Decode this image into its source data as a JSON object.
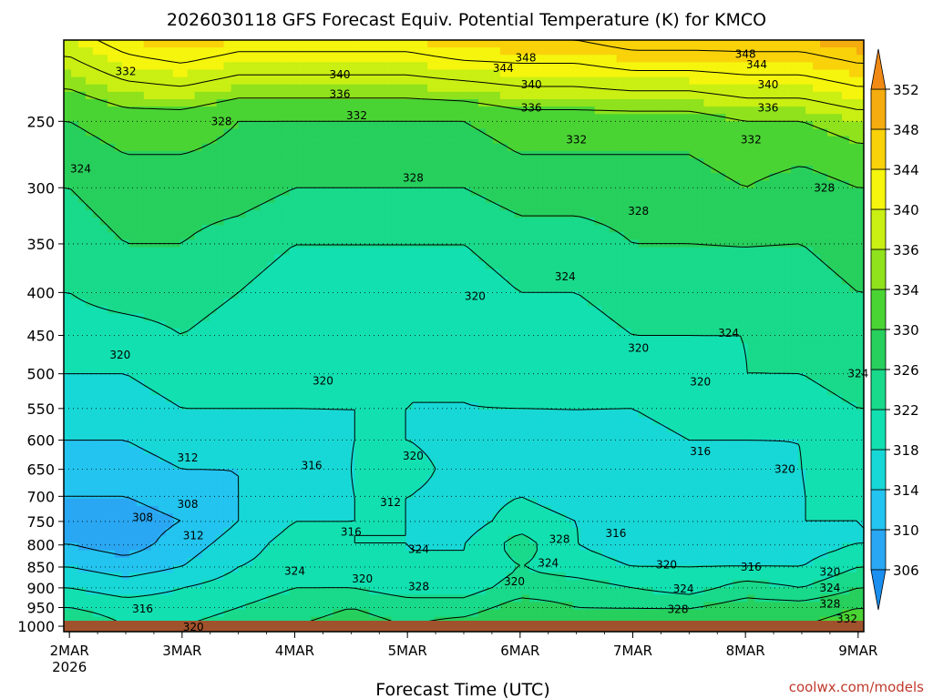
{
  "page": {
    "title": "2026030118 GFS Forecast Equiv. Potential Temperature (K) for KMCO",
    "credit": "coolwx.com/models"
  },
  "chart_data": {
    "type": "heatmap",
    "title": "2026030118 GFS Forecast Equiv. Potential Temperature (K) for KMCO",
    "xlabel": "Forecast Time (UTC)",
    "ylabel": "",
    "x_ticks": [
      {
        "day": 0,
        "label": "2MAR",
        "sublabel": "2026"
      },
      {
        "day": 1,
        "label": "3MAR",
        "sublabel": ""
      },
      {
        "day": 2,
        "label": "4MAR",
        "sublabel": ""
      },
      {
        "day": 3,
        "label": "5MAR",
        "sublabel": ""
      },
      {
        "day": 4,
        "label": "6MAR",
        "sublabel": ""
      },
      {
        "day": 5,
        "label": "7MAR",
        "sublabel": ""
      },
      {
        "day": 6,
        "label": "8MAR",
        "sublabel": ""
      },
      {
        "day": 7,
        "label": "9MAR",
        "sublabel": ""
      }
    ],
    "x_range_days": [
      -0.05,
      7.05
    ],
    "y_ticks": [
      1000,
      950,
      900,
      850,
      800,
      750,
      700,
      650,
      600,
      550,
      500,
      450,
      400,
      350,
      300,
      250
    ],
    "y_range_hPa": [
      1015,
      200
    ],
    "y_scale": "log",
    "grid": true,
    "colorbar": {
      "ticks": [
        306,
        310,
        314,
        318,
        322,
        326,
        330,
        334,
        336,
        340,
        344,
        348,
        352
      ],
      "colors": [
        "#2aa7f2",
        "#23c4ef",
        "#17d8d6",
        "#12e0b0",
        "#19d98a",
        "#27cf5c",
        "#4ad434",
        "#8fe21c",
        "#c9ef13",
        "#f5f50d",
        "#f9d20a",
        "#f4ac0e"
      ]
    },
    "levels": [
      1000,
      950,
      900,
      850,
      800,
      750,
      700,
      650,
      600,
      550,
      500,
      450,
      400,
      350,
      300,
      250,
      200
    ],
    "times": [
      0,
      0.5,
      1,
      1.5,
      2,
      2.5,
      3,
      3.5,
      4,
      4.5,
      5,
      5.5,
      6,
      6.5,
      7
    ],
    "values": [
      [
        326,
        322,
        322,
        324,
        326,
        328,
        326,
        328,
        330,
        328,
        328,
        328,
        330,
        330,
        332
      ],
      [
        322,
        320,
        320,
        322,
        324,
        326,
        324,
        324,
        328,
        326,
        326,
        326,
        328,
        328,
        330
      ],
      [
        318,
        316,
        318,
        320,
        322,
        322,
        320,
        320,
        324,
        324,
        322,
        320,
        324,
        322,
        326
      ],
      [
        314,
        312,
        314,
        318,
        320,
        320,
        318,
        318,
        322,
        320,
        318,
        318,
        318,
        318,
        322
      ],
      [
        310,
        308,
        312,
        316,
        320,
        318,
        318,
        318,
        324,
        318,
        316,
        316,
        316,
        316,
        318
      ],
      [
        308,
        308,
        310,
        314,
        318,
        318,
        318,
        316,
        320,
        318,
        316,
        316,
        316,
        318,
        318
      ],
      [
        310,
        310,
        312,
        314,
        316,
        318,
        318,
        316,
        318,
        316,
        314,
        316,
        314,
        318,
        318
      ],
      [
        312,
        312,
        314,
        314,
        316,
        318,
        320,
        316,
        316,
        316,
        316,
        316,
        316,
        318,
        320
      ],
      [
        314,
        314,
        316,
        316,
        316,
        318,
        318,
        316,
        316,
        318,
        316,
        318,
        318,
        318,
        320
      ],
      [
        316,
        316,
        318,
        318,
        318,
        318,
        318,
        318,
        318,
        318,
        318,
        320,
        320,
        320,
        322
      ],
      [
        318,
        318,
        320,
        320,
        320,
        320,
        318,
        318,
        320,
        320,
        320,
        320,
        322,
        322,
        324
      ],
      [
        320,
        320,
        322,
        320,
        320,
        318,
        318,
        318,
        320,
        320,
        322,
        322,
        322,
        324,
        324
      ],
      [
        322,
        324,
        324,
        322,
        320,
        320,
        320,
        320,
        322,
        322,
        324,
        324,
        326,
        324,
        326
      ],
      [
        324,
        326,
        326,
        324,
        322,
        322,
        322,
        322,
        324,
        324,
        326,
        326,
        326,
        326,
        328
      ],
      [
        326,
        328,
        328,
        328,
        326,
        326,
        326,
        326,
        328,
        328,
        328,
        328,
        330,
        328,
        330
      ],
      [
        330,
        332,
        332,
        330,
        330,
        330,
        330,
        330,
        332,
        332,
        332,
        332,
        334,
        334,
        336
      ],
      [
        340,
        344,
        346,
        344,
        344,
        344,
        344,
        346,
        346,
        346,
        348,
        348,
        348,
        348,
        350
      ]
    ],
    "contour_labels": [
      {
        "text": "348",
        "day": 4.05,
        "p": 210
      },
      {
        "text": "344",
        "day": 3.85,
        "p": 216
      },
      {
        "text": "340",
        "day": 2.4,
        "p": 220
      },
      {
        "text": "340",
        "day": 4.1,
        "p": 226
      },
      {
        "text": "336",
        "day": 2.4,
        "p": 232
      },
      {
        "text": "336",
        "day": 4.1,
        "p": 241
      },
      {
        "text": "332",
        "day": 0.5,
        "p": 218
      },
      {
        "text": "332",
        "day": 2.55,
        "p": 246
      },
      {
        "text": "332",
        "day": 4.5,
        "p": 263
      },
      {
        "text": "328",
        "day": 1.35,
        "p": 250
      },
      {
        "text": "328",
        "day": 3.05,
        "p": 292
      },
      {
        "text": "328",
        "day": 5.05,
        "p": 320
      },
      {
        "text": "324",
        "day": 0.1,
        "p": 285
      },
      {
        "text": "324",
        "day": 4.4,
        "p": 383
      },
      {
        "text": "320",
        "day": 3.6,
        "p": 404
      },
      {
        "text": "320",
        "day": 0.45,
        "p": 475
      },
      {
        "text": "320",
        "day": 2.25,
        "p": 510
      },
      {
        "text": "320",
        "day": 5.05,
        "p": 466
      },
      {
        "text": "320",
        "day": 5.6,
        "p": 511
      },
      {
        "text": "316",
        "day": 2.15,
        "p": 643
      },
      {
        "text": "312",
        "day": 1.05,
        "p": 630
      },
      {
        "text": "308",
        "day": 1.05,
        "p": 715
      },
      {
        "text": "308",
        "day": 0.65,
        "p": 742
      },
      {
        "text": "320",
        "day": 3.05,
        "p": 627
      },
      {
        "text": "316",
        "day": 5.6,
        "p": 619
      },
      {
        "text": "320",
        "day": 6.35,
        "p": 650
      },
      {
        "text": "312",
        "day": 2.85,
        "p": 712
      },
      {
        "text": "312",
        "day": 1.1,
        "p": 780
      },
      {
        "text": "316",
        "day": 2.5,
        "p": 772
      },
      {
        "text": "324",
        "day": 3.1,
        "p": 810
      },
      {
        "text": "328",
        "day": 4.35,
        "p": 788
      },
      {
        "text": "316",
        "day": 4.85,
        "p": 775
      },
      {
        "text": "324",
        "day": 4.25,
        "p": 840
      },
      {
        "text": "324",
        "day": 2.0,
        "p": 860
      },
      {
        "text": "320",
        "day": 2.6,
        "p": 878
      },
      {
        "text": "328",
        "day": 3.1,
        "p": 897
      },
      {
        "text": "320",
        "day": 3.95,
        "p": 885
      },
      {
        "text": "320",
        "day": 5.3,
        "p": 845
      },
      {
        "text": "324",
        "day": 5.45,
        "p": 903
      },
      {
        "text": "316",
        "day": 6.05,
        "p": 850
      },
      {
        "text": "320",
        "day": 6.75,
        "p": 862
      },
      {
        "text": "324",
        "day": 6.75,
        "p": 900
      },
      {
        "text": "328",
        "day": 5.4,
        "p": 955
      },
      {
        "text": "328",
        "day": 6.75,
        "p": 940
      },
      {
        "text": "332",
        "day": 6.9,
        "p": 980
      },
      {
        "text": "316",
        "day": 0.65,
        "p": 953
      },
      {
        "text": "320",
        "day": 1.1,
        "p": 1002
      },
      {
        "text": "324",
        "day": 7.0,
        "p": 500
      },
      {
        "text": "324",
        "day": 5.85,
        "p": 447
      },
      {
        "text": "328",
        "day": 6.7,
        "p": 300
      },
      {
        "text": "332",
        "day": 6.05,
        "p": 263
      },
      {
        "text": "336",
        "day": 6.2,
        "p": 241
      },
      {
        "text": "340",
        "day": 6.2,
        "p": 226
      },
      {
        "text": "344",
        "day": 6.1,
        "p": 214
      },
      {
        "text": "348",
        "day": 6.0,
        "p": 208
      }
    ],
    "ground_color": "#a0522d"
  }
}
